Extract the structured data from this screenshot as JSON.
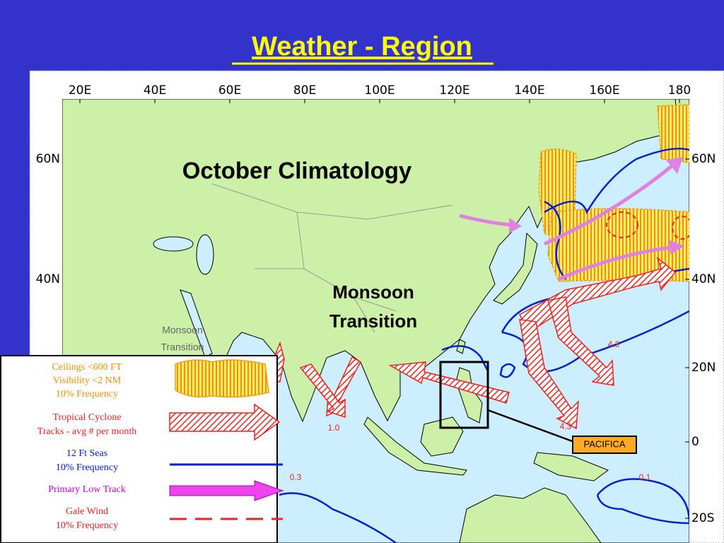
{
  "title": "Weather - Region",
  "map": {
    "top_labels": [
      "20E",
      "40E",
      "60E",
      "80E",
      "100E",
      "120E",
      "140E",
      "160E",
      "180"
    ],
    "right_labels": [
      "60N",
      "40N",
      "20N",
      "0",
      "20S"
    ],
    "left_labels": [
      "60N",
      "40N"
    ],
    "heading": "October Climatology",
    "region": [
      "Monsoon",
      "Transition"
    ],
    "region_small": [
      "Monsoon",
      "Transition"
    ],
    "cyclone_rates": [
      "4.3",
      "4.3",
      "1.0"
    ],
    "seas_rates": [
      "0.3",
      "0.1"
    ],
    "inset": "PACIFICA"
  },
  "legend": [
    {
      "lines": [
        "Ceilings <600 FT",
        "Visibility <2 NM",
        "10% Frequency"
      ]
    },
    {
      "lines": [
        "Tropical Cyclone",
        "Tracks - avg # per month"
      ]
    },
    {
      "lines": [
        "12 Ft Seas",
        "10% Frequency"
      ]
    },
    {
      "lines": [
        "Primary Low Track"
      ]
    },
    {
      "lines": [
        "Gale Wind",
        "10% Frequency"
      ]
    }
  ]
}
